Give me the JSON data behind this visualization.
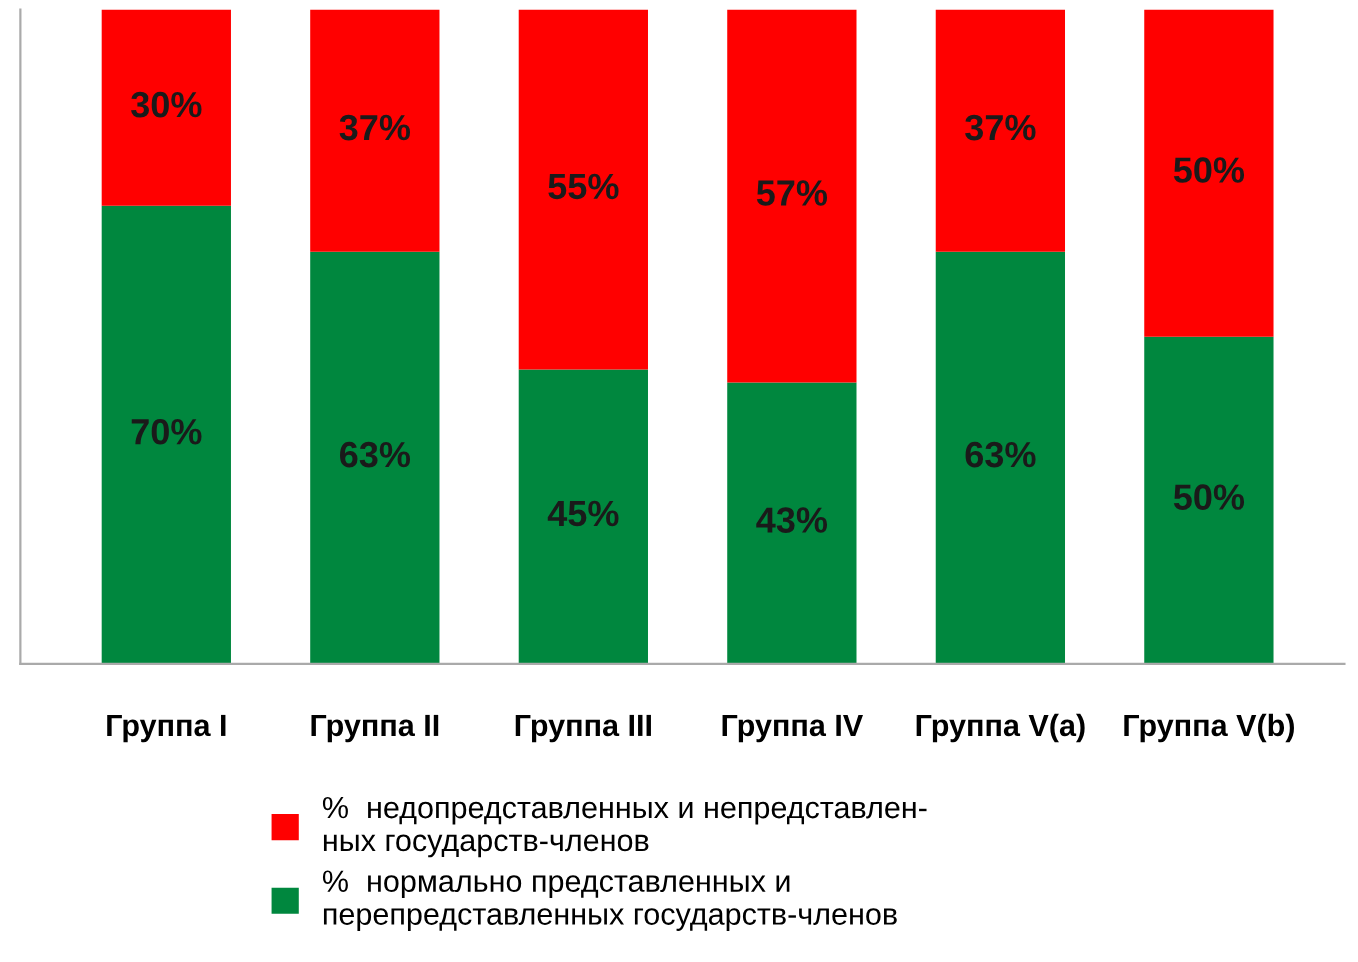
{
  "chart_data": {
    "type": "bar",
    "stacked": true,
    "categories": [
      "Группа I",
      "Группа II",
      "Группа III",
      "Группа IV",
      "Группа V(a)",
      "Группа V(b)"
    ],
    "series": [
      {
        "name": "%  нормально представленных и\nперепредставленных государств-членов",
        "color": "#00873e",
        "values": [
          70,
          63,
          45,
          43,
          63,
          50
        ],
        "value_labels": [
          "70%",
          "63%",
          "45%",
          "43%",
          "63%",
          "50%"
        ]
      },
      {
        "name": "%  недопредставленных и непредставлен-\nных государств-членов",
        "color": "#ff0000",
        "values": [
          30,
          37,
          55,
          57,
          37,
          50
        ],
        "value_labels": [
          "30%",
          "37%",
          "55%",
          "57%",
          "37%",
          "50%"
        ]
      }
    ],
    "legend": "bottom",
    "grid": false
  }
}
